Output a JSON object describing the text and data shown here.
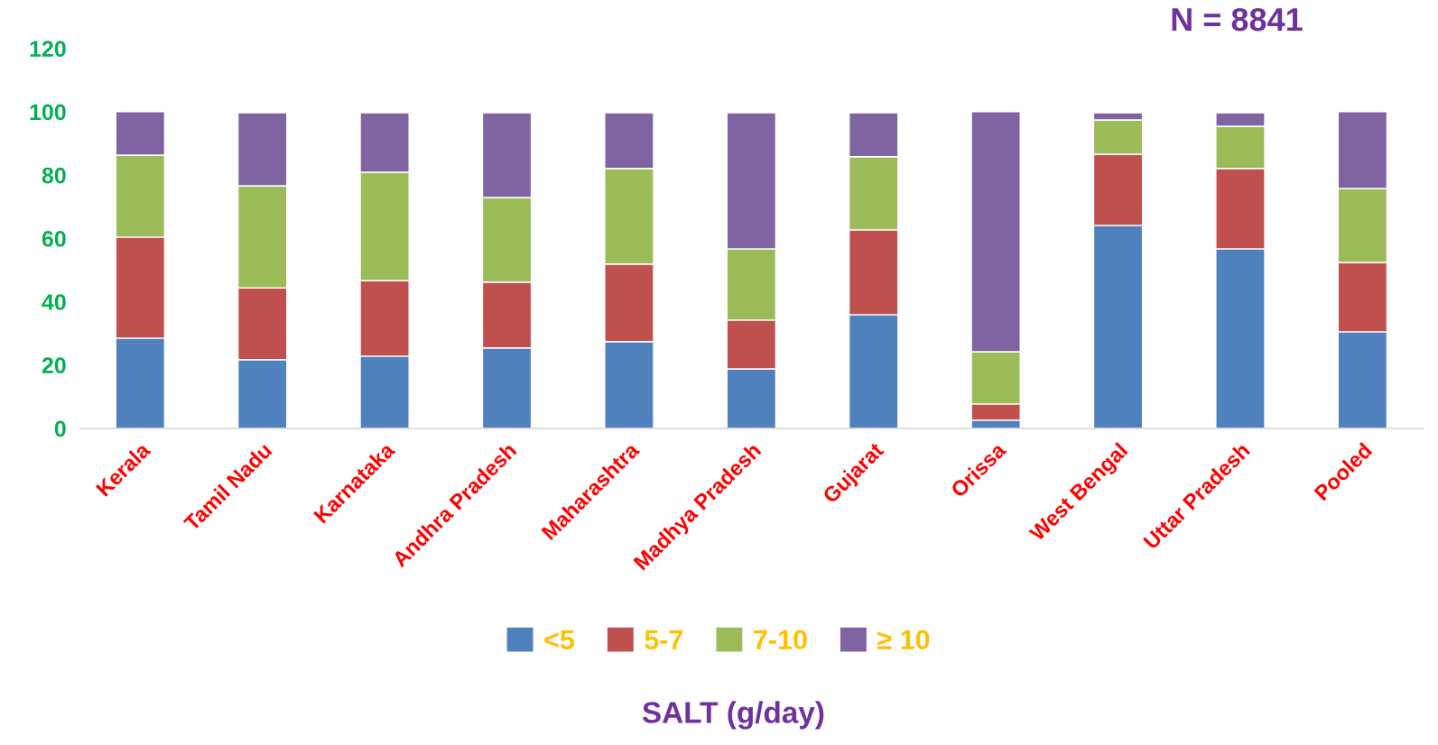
{
  "chart_data": {
    "type": "bar",
    "stacked": true,
    "xlabel": "SALT (g/day)",
    "annotations": [
      "N = 8841"
    ],
    "categories": [
      "Kerala",
      "Tamil Nadu",
      "Karnataka",
      "Andhra Pradesh",
      "Maharashtra",
      "Madhya Pradesh",
      "Gujarat",
      "Orissa",
      "West Bengal",
      "Uttar Pradesh",
      "Pooled"
    ],
    "series": [
      {
        "name": "<5",
        "color": "#4f81bd",
        "values": [
          28.5,
          21.7,
          22.8,
          25.4,
          27.4,
          18.8,
          35.9,
          2.6,
          64.1,
          56.7,
          30.5
        ]
      },
      {
        "name": "5-7",
        "color": "#c0504d",
        "values": [
          31.9,
          22.7,
          23.9,
          20.8,
          24.5,
          15.4,
          26.8,
          5.1,
          22.5,
          25.4,
          21.9
        ]
      },
      {
        "name": "7-10",
        "color": "#9bbb59",
        "values": [
          25.9,
          32.2,
          34.2,
          26.7,
          30.2,
          22.5,
          23.1,
          16.5,
          10.8,
          13.3,
          23.4
        ]
      },
      {
        "name": "≥ 10",
        "color": "#8064a2",
        "values": [
          13.7,
          23.1,
          18.8,
          26.8,
          17.6,
          43.0,
          13.9,
          75.8,
          2.3,
          4.3,
          24.2
        ]
      }
    ],
    "ylim": [
      0,
      120
    ],
    "yticks": [
      0,
      20,
      40,
      60,
      80,
      100,
      120
    ],
    "grid": false,
    "legend": "bottom"
  }
}
